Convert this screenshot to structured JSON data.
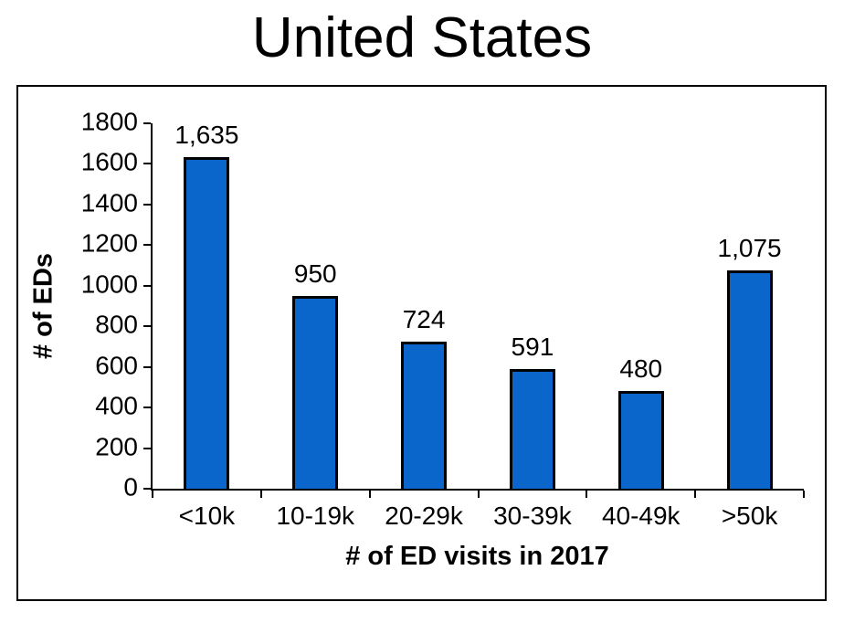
{
  "title": "United States",
  "chart_data": {
    "type": "bar",
    "title": "United States",
    "categories": [
      "<10k",
      "10-19k",
      "20-29k",
      "30-39k",
      "40-49k",
      ">50k"
    ],
    "values": [
      1635,
      950,
      724,
      591,
      480,
      1075
    ],
    "value_labels": [
      "1,635",
      "950",
      "724",
      "591",
      "480",
      "1,075"
    ],
    "xlabel": "# of ED visits in 2017",
    "ylabel": "# of EDs",
    "ylim": [
      0,
      1800
    ],
    "yticks": [
      0,
      200,
      400,
      600,
      800,
      1000,
      1200,
      1400,
      1600,
      1800
    ],
    "grid": false,
    "legend": false,
    "bar_color": "#0B66CC",
    "bar_border_color": "#000000",
    "axis_color": "#000000",
    "background_color": "#FFFFFF"
  }
}
